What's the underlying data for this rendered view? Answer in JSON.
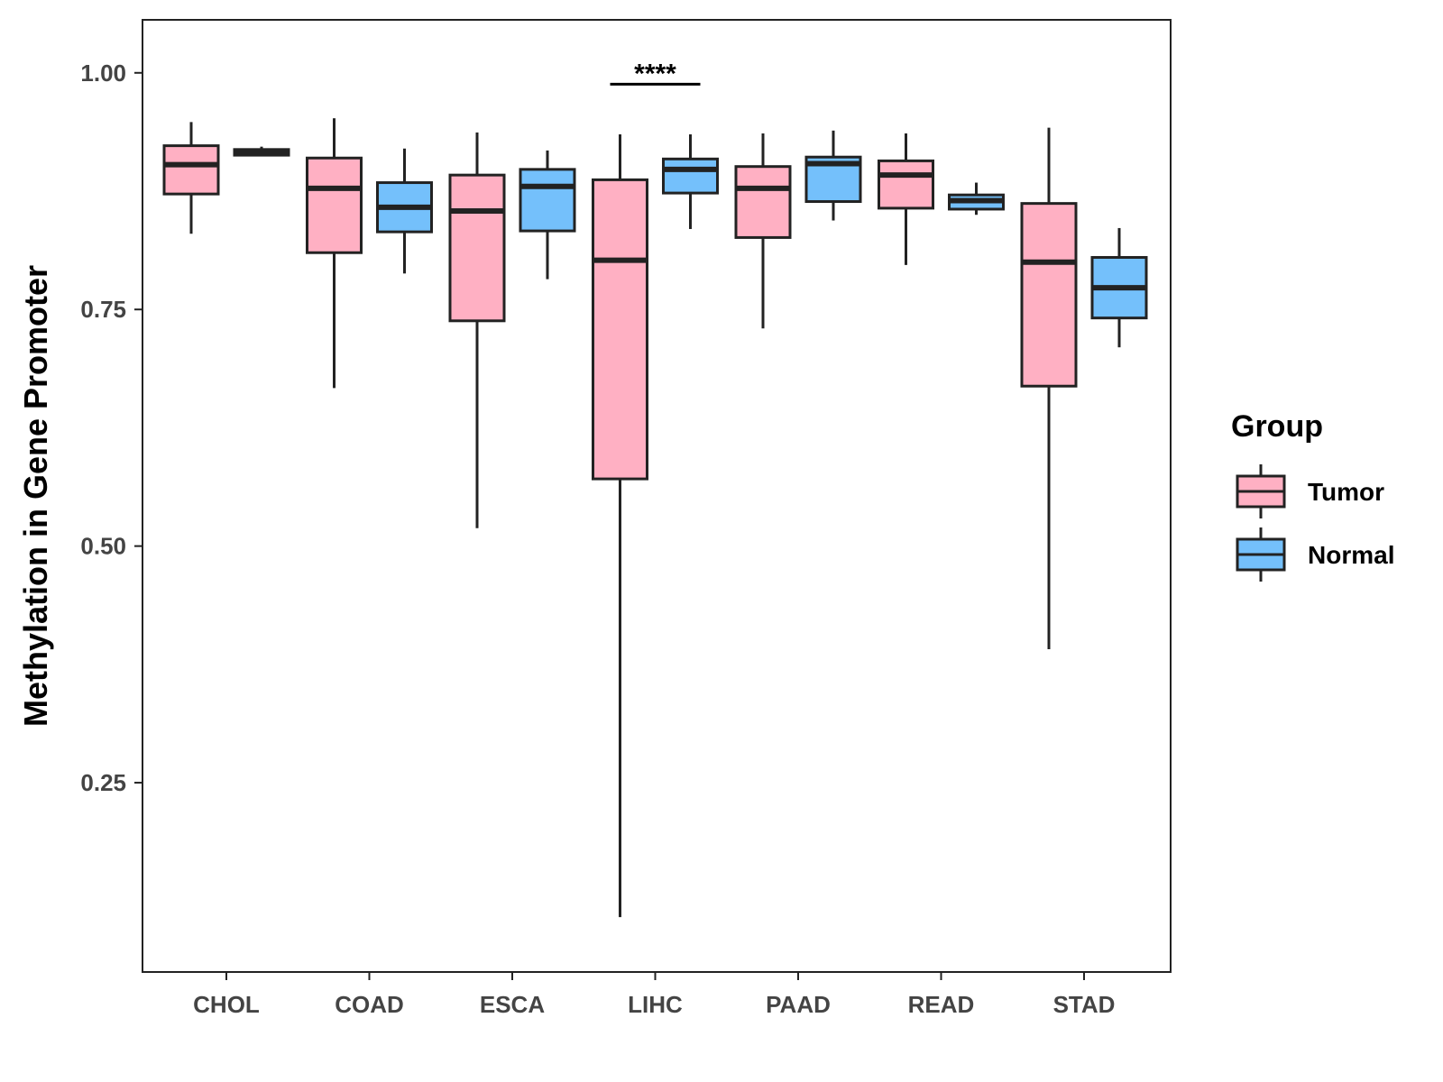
{
  "chart_data": {
    "type": "boxplot",
    "title": "",
    "xlabel": "",
    "ylabel": "Methylation in Gene Promoter",
    "ylim": [
      0.05,
      1.056
    ],
    "yticks": [
      0.25,
      0.5,
      0.75,
      1.0
    ],
    "ytick_labels": [
      "0.25",
      "0.50",
      "0.75",
      "1.00"
    ],
    "categories": [
      "CHOL",
      "COAD",
      "ESCA",
      "LIHC",
      "PAAD",
      "READ",
      "STAD"
    ],
    "grid": false,
    "legend": {
      "title": "Group",
      "placement": "right",
      "entries": [
        "Tumor",
        "Normal"
      ]
    },
    "colors": {
      "Tumor": "#ffb0c3",
      "Normal": "#74c0fb",
      "stroke": "#222222"
    },
    "series": [
      {
        "name": "Tumor",
        "boxes": [
          {
            "category": "CHOL",
            "min": 0.83,
            "q1": 0.872,
            "median": 0.903,
            "q3": 0.923,
            "max": 0.948
          },
          {
            "category": "COAD",
            "min": 0.667,
            "q1": 0.81,
            "median": 0.878,
            "q3": 0.91,
            "max": 0.952
          },
          {
            "category": "ESCA",
            "min": 0.519,
            "q1": 0.738,
            "median": 0.854,
            "q3": 0.892,
            "max": 0.937
          },
          {
            "category": "LIHC",
            "min": 0.108,
            "q1": 0.571,
            "median": 0.802,
            "q3": 0.887,
            "max": 0.935
          },
          {
            "category": "PAAD",
            "min": 0.73,
            "q1": 0.826,
            "median": 0.878,
            "q3": 0.901,
            "max": 0.936
          },
          {
            "category": "READ",
            "min": 0.797,
            "q1": 0.857,
            "median": 0.892,
            "q3": 0.907,
            "max": 0.936
          },
          {
            "category": "STAD",
            "min": 0.391,
            "q1": 0.669,
            "median": 0.8,
            "q3": 0.862,
            "max": 0.942
          }
        ]
      },
      {
        "name": "Normal",
        "boxes": [
          {
            "category": "CHOL",
            "min": 0.913,
            "q1": 0.913,
            "median": 0.916,
            "q3": 0.919,
            "max": 0.922
          },
          {
            "category": "COAD",
            "min": 0.788,
            "q1": 0.832,
            "median": 0.858,
            "q3": 0.884,
            "max": 0.92
          },
          {
            "category": "ESCA",
            "min": 0.782,
            "q1": 0.833,
            "median": 0.88,
            "q3": 0.898,
            "max": 0.918
          },
          {
            "category": "LIHC",
            "min": 0.835,
            "q1": 0.873,
            "median": 0.898,
            "q3": 0.909,
            "max": 0.935
          },
          {
            "category": "PAAD",
            "min": 0.844,
            "q1": 0.864,
            "median": 0.904,
            "q3": 0.911,
            "max": 0.939
          },
          {
            "category": "READ",
            "min": 0.85,
            "q1": 0.856,
            "median": 0.865,
            "q3": 0.871,
            "max": 0.884
          },
          {
            "category": "STAD",
            "min": 0.71,
            "q1": 0.741,
            "median": 0.773,
            "q3": 0.805,
            "max": 0.836
          }
        ]
      }
    ],
    "annotations": [
      {
        "category": "LIHC",
        "text": "****",
        "y": 0.988
      }
    ]
  }
}
